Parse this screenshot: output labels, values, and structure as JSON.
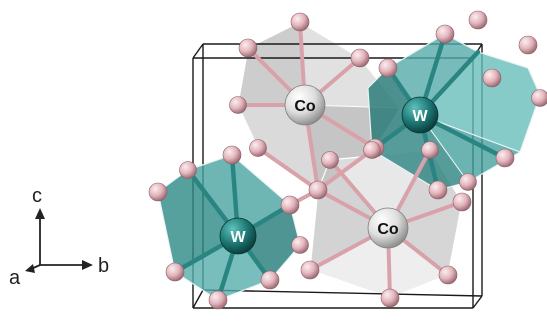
{
  "axes": {
    "c_label": "c",
    "a_label": "a",
    "b_label": "b"
  },
  "atoms": {
    "cobalt_label": "Co",
    "tungsten_label": "W"
  },
  "colors": {
    "background": "#ffffff",
    "oxygen_atom": "#e3b5bc",
    "tungsten_atom": "#1f7b78",
    "cobalt_atom": "#d9d9d9",
    "tungsten_polyhedron": "#3e9896",
    "cobalt_polyhedron": "#c9c9c9",
    "cell_edge": "#1a1a1a",
    "bond_pink": "#d9a2ab",
    "bond_teal": "#2a8582"
  }
}
